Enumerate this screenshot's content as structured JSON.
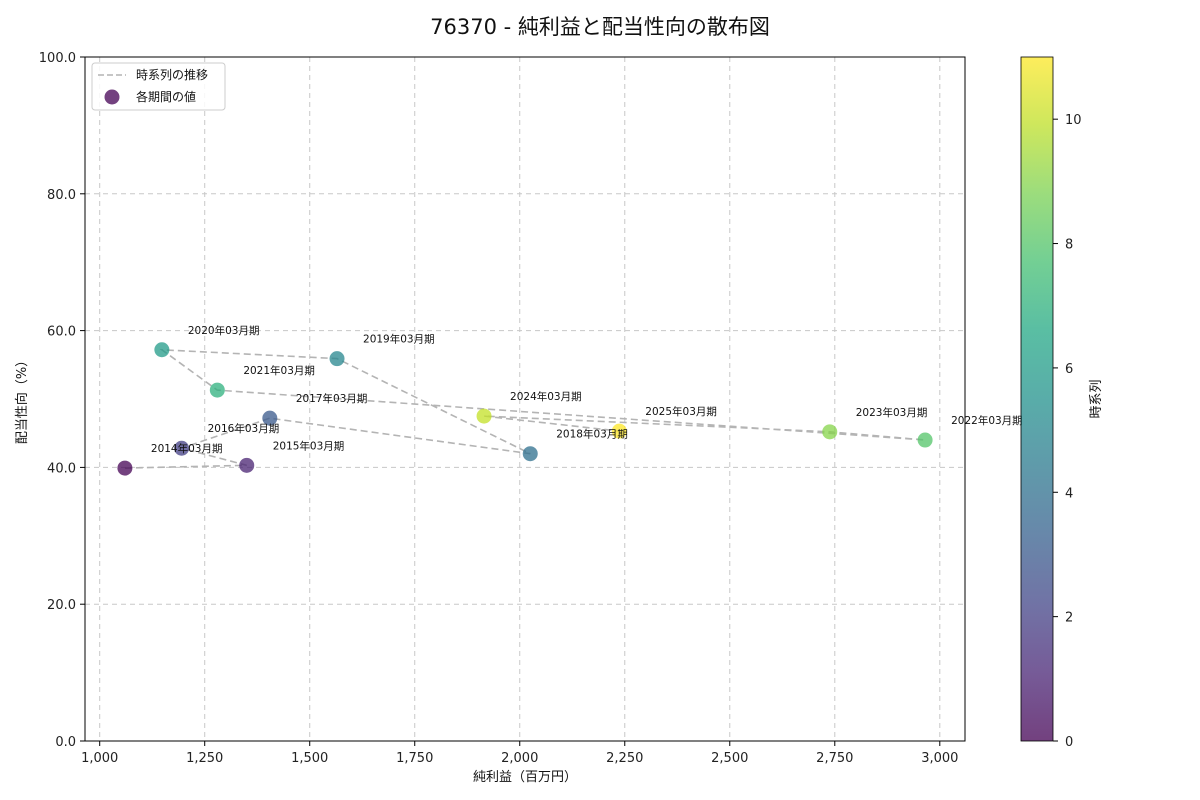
{
  "chart_data": {
    "type": "scatter",
    "title": "76370 - 純利益と配当性向の散布図",
    "xlabel": "純利益（百万円）",
    "ylabel": "配当性向（%）",
    "xlim": [
      965,
      3060
    ],
    "ylim": [
      0,
      100
    ],
    "xticks": [
      1000,
      1250,
      1500,
      1750,
      2000,
      2250,
      2500,
      2750,
      3000
    ],
    "xtick_labels": [
      "1,000",
      "1,250",
      "1,500",
      "1,750",
      "2,000",
      "2,250",
      "2,500",
      "2,750",
      "3,000"
    ],
    "yticks": [
      0,
      20,
      40,
      60,
      80,
      100
    ],
    "ytick_labels": [
      "0.0",
      "20.0",
      "40.0",
      "60.0",
      "80.0",
      "100.0"
    ],
    "grid": true,
    "legend": {
      "position": "top-left",
      "entries": [
        "時系列の推移",
        "各期間の値"
      ]
    },
    "colorbar": {
      "label": "時系列",
      "range": [
        0,
        11
      ],
      "ticks": [
        0,
        2,
        4,
        6,
        8,
        10
      ],
      "tick_labels": [
        "0",
        "2",
        "4",
        "6",
        "8",
        "10"
      ]
    },
    "points": [
      {
        "label": "2014年03月期",
        "x": 1060,
        "y": 39.9,
        "t": 0
      },
      {
        "label": "2015年03月期",
        "x": 1350,
        "y": 40.3,
        "t": 1
      },
      {
        "label": "2016年03月期",
        "x": 1195,
        "y": 42.8,
        "t": 2
      },
      {
        "label": "2017年03月期",
        "x": 1405,
        "y": 47.2,
        "t": 3
      },
      {
        "label": "2018年03月期",
        "x": 2025,
        "y": 42.0,
        "t": 4
      },
      {
        "label": "2019年03月期",
        "x": 1565,
        "y": 55.9,
        "t": 5
      },
      {
        "label": "2020年03月期",
        "x": 1148,
        "y": 57.2,
        "t": 6
      },
      {
        "label": "2021年03月期",
        "x": 1280,
        "y": 51.3,
        "t": 7
      },
      {
        "label": "2022年03月期",
        "x": 2965,
        "y": 44.0,
        "t": 8
      },
      {
        "label": "2023年03月期",
        "x": 2738,
        "y": 45.2,
        "t": 9
      },
      {
        "label": "2024年03月期",
        "x": 1915,
        "y": 47.5,
        "t": 10
      },
      {
        "label": "2025年03月期",
        "x": 2237,
        "y": 45.3,
        "t": 11
      }
    ]
  }
}
